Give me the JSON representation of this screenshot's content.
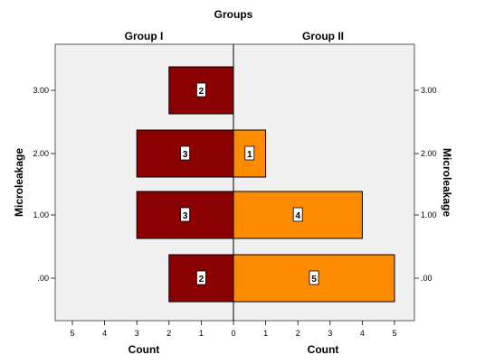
{
  "chart_data": {
    "type": "bar",
    "orientation": "horizontal",
    "layout": "back-to-back population pyramid",
    "title": "Groups",
    "categories": [
      ".00",
      "1.00",
      "2.00",
      "3.00"
    ],
    "series": [
      {
        "name": "Group I",
        "values": [
          2,
          3,
          3,
          2
        ],
        "color": "#8b0000"
      },
      {
        "name": "Group II",
        "values": [
          5,
          4,
          1,
          0
        ],
        "color": "#ff8c00"
      }
    ],
    "ylabel": "Microleakage",
    "xlabel": "Count",
    "xlim": [
      0,
      5
    ],
    "xticks": [
      "0",
      "1",
      "2",
      "3",
      "4",
      "5"
    ],
    "data_labels": true,
    "grid": false,
    "plot_background": "#f0f0f0"
  }
}
